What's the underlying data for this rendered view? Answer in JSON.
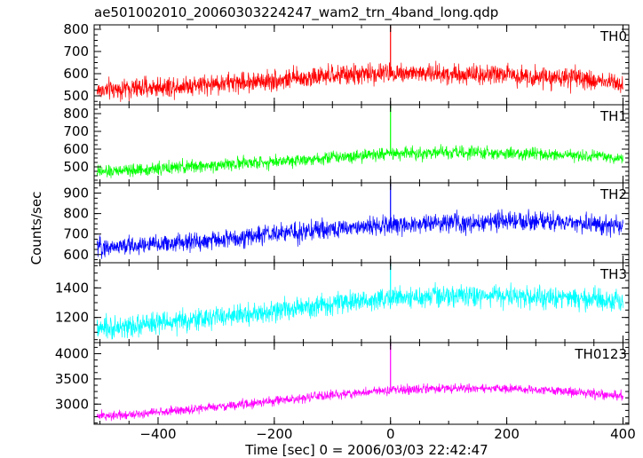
{
  "title": "ae501002010_20060303224247_wam2_trn_4band_long.qdp",
  "ylabel": "Counts/sec",
  "xlabel": "Time [sec] 0 = 2006/03/03 22:42:47",
  "x_ticks": [
    "−400",
    "−200",
    "0",
    "200",
    "400"
  ],
  "chart_data": [
    {
      "type": "line",
      "name": "TH0",
      "color": "#ff0000",
      "xlim": [
        -510,
        410
      ],
      "ylim": [
        460,
        820
      ],
      "yticks": [
        500,
        600,
        700,
        800
      ],
      "ytick_labels": [
        "500",
        "600",
        "700",
        "800"
      ],
      "trend_x": [
        -500,
        -400,
        -300,
        -200,
        -100,
        0,
        100,
        200,
        300,
        400
      ],
      "trend_y": [
        525,
        540,
        555,
        570,
        590,
        605,
        600,
        595,
        580,
        560
      ],
      "noise_amplitude": 45,
      "spike": {
        "x": 0,
        "y": 815
      }
    },
    {
      "type": "line",
      "name": "TH1",
      "color": "#00ff00",
      "xlim": [
        -510,
        410
      ],
      "ylim": [
        410,
        850
      ],
      "yticks": [
        500,
        600,
        700,
        800
      ],
      "ytick_labels": [
        "500",
        "600",
        "700",
        "800"
      ],
      "trend_x": [
        -500,
        -400,
        -300,
        -200,
        -100,
        0,
        100,
        200,
        300,
        400
      ],
      "trend_y": [
        470,
        490,
        510,
        530,
        555,
        575,
        580,
        575,
        565,
        550
      ],
      "noise_amplitude": 35,
      "spike": {
        "x": 0,
        "y": 845
      }
    },
    {
      "type": "line",
      "name": "TH2",
      "color": "#0000ff",
      "xlim": [
        -510,
        410
      ],
      "ylim": [
        560,
        950
      ],
      "yticks": [
        600,
        700,
        800,
        900
      ],
      "ytick_labels": [
        "600",
        "700",
        "800",
        "900"
      ],
      "trend_x": [
        -500,
        -400,
        -300,
        -200,
        -100,
        0,
        100,
        200,
        300,
        400
      ],
      "trend_y": [
        635,
        650,
        670,
        700,
        725,
        745,
        755,
        760,
        755,
        740
      ],
      "noise_amplitude": 45,
      "spike": {
        "x": 0,
        "y": 945
      }
    },
    {
      "type": "line",
      "name": "TH3",
      "color": "#00ffff",
      "xlim": [
        -510,
        410
      ],
      "ylim": [
        1030,
        1570
      ],
      "yticks": [
        1200,
        1400
      ],
      "ytick_labels": [
        "1200",
        "1400"
      ],
      "trend_x": [
        -500,
        -400,
        -300,
        -200,
        -100,
        0,
        100,
        200,
        300,
        400
      ],
      "trend_y": [
        1120,
        1160,
        1200,
        1240,
        1290,
        1330,
        1345,
        1345,
        1330,
        1310
      ],
      "noise_amplitude": 70,
      "spike": {
        "x": 0,
        "y": 1565
      }
    },
    {
      "type": "line",
      "name": "TH0123",
      "color": "#ff00ff",
      "xlim": [
        -510,
        410
      ],
      "ylim": [
        2600,
        4220
      ],
      "yticks": [
        3000,
        3500,
        4000
      ],
      "ytick_labels": [
        "3000",
        "3500",
        "4000"
      ],
      "trend_x": [
        -500,
        -400,
        -300,
        -200,
        -100,
        0,
        100,
        200,
        300,
        400
      ],
      "trend_y": [
        2760,
        2840,
        2940,
        3060,
        3180,
        3280,
        3310,
        3320,
        3250,
        3150
      ],
      "noise_amplitude": 90,
      "spike": {
        "x": 0,
        "y": 4210
      }
    }
  ]
}
